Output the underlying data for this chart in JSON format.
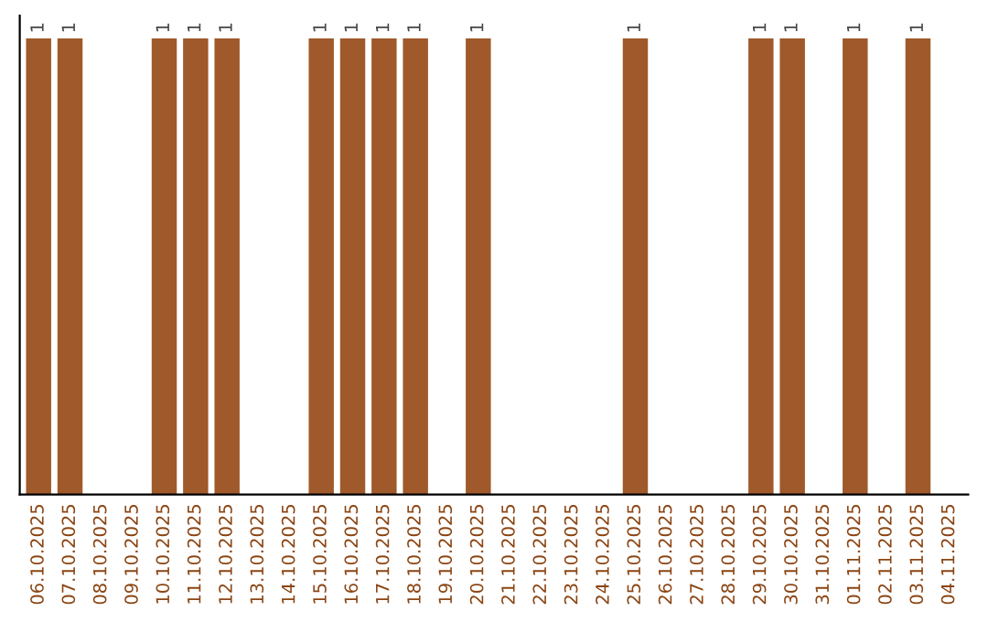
{
  "chart_data": {
    "type": "bar",
    "categories": [
      "06.10.2025",
      "07.10.2025",
      "08.10.2025",
      "09.10.2025",
      "10.10.2025",
      "11.10.2025",
      "12.10.2025",
      "13.10.2025",
      "14.10.2025",
      "15.10.2025",
      "16.10.2025",
      "17.10.2025",
      "18.10.2025",
      "19.10.2025",
      "20.10.2025",
      "21.10.2025",
      "22.10.2025",
      "23.10.2025",
      "24.10.2025",
      "25.10.2025",
      "26.10.2025",
      "27.10.2025",
      "28.10.2025",
      "29.10.2025",
      "30.10.2025",
      "31.10.2025",
      "01.11.2025",
      "02.11.2025",
      "03.11.2025",
      "04.11.2025"
    ],
    "values": [
      1,
      1,
      null,
      null,
      1,
      1,
      1,
      null,
      null,
      1,
      1,
      1,
      1,
      null,
      1,
      null,
      null,
      null,
      null,
      1,
      null,
      null,
      null,
      1,
      1,
      null,
      1,
      null,
      1,
      null
    ],
    "color": "#a0592a",
    "data_labels": true,
    "tick_labels": "x",
    "grid": false,
    "legend": false
  }
}
